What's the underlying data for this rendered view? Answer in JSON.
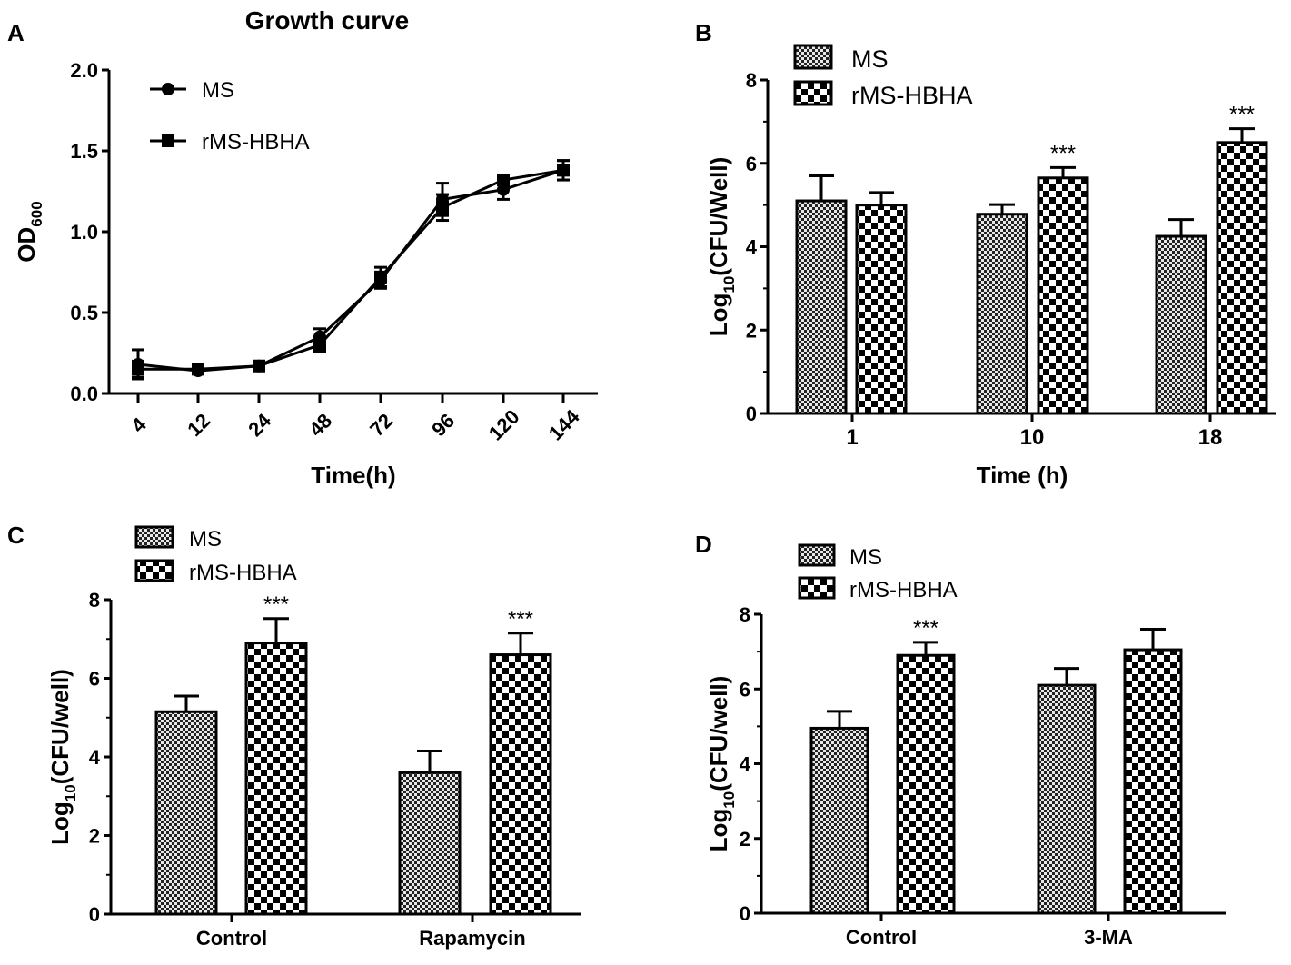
{
  "chart_data": [
    {
      "panel": "A",
      "type": "line",
      "title": "Growth curve",
      "xlabel": "Time(h)",
      "ylabel": "OD",
      "ylabel_sub": "600",
      "categories": [
        "4",
        "12",
        "24",
        "48",
        "72",
        "96",
        "120",
        "144"
      ],
      "ylim": [
        0,
        2.0
      ],
      "yticks": [
        "0.0",
        "0.5",
        "1.0",
        "1.5",
        "2.0"
      ],
      "legend_position": "top-left",
      "series": [
        {
          "name": "MS",
          "marker": "circle",
          "values": [
            0.18,
            0.14,
            0.17,
            0.35,
            0.7,
            1.2,
            1.26,
            1.38
          ],
          "errors": [
            0.09,
            0.02,
            0.02,
            0.05,
            0.05,
            0.1,
            0.06,
            0.06
          ]
        },
        {
          "name": "rMS-HBHA",
          "marker": "square",
          "values": [
            0.15,
            0.15,
            0.17,
            0.3,
            0.72,
            1.15,
            1.32,
            1.38
          ],
          "errors": [
            0.05,
            0.02,
            0.02,
            0.04,
            0.06,
            0.08,
            0.03,
            0.06
          ]
        }
      ]
    },
    {
      "panel": "B",
      "type": "bar",
      "xlabel": "Time (h)",
      "ylabel": "Log",
      "ylabel_sub": "10",
      "ylabel_rest": "(CFU/Well)",
      "categories": [
        "1",
        "10",
        "18"
      ],
      "ylim": [
        0,
        8
      ],
      "yticks": [
        "0",
        "2",
        "4",
        "6",
        "8"
      ],
      "legend_position": "top-left",
      "series": [
        {
          "name": "MS",
          "values": [
            5.1,
            4.78,
            4.25
          ],
          "errors": [
            0.6,
            0.23,
            0.4
          ],
          "sig": [
            "",
            "",
            ""
          ]
        },
        {
          "name": "rMS-HBHA",
          "values": [
            5.0,
            5.65,
            6.5
          ],
          "errors": [
            0.3,
            0.25,
            0.33
          ],
          "sig": [
            "",
            "***",
            "***"
          ]
        }
      ]
    },
    {
      "panel": "C",
      "type": "bar",
      "xlabel": "",
      "ylabel": "Log",
      "ylabel_sub": "10",
      "ylabel_rest": "(CFU/well)",
      "categories": [
        "Control",
        "Rapamycin"
      ],
      "ylim": [
        0,
        8
      ],
      "yticks": [
        "0",
        "2",
        "4",
        "6",
        "8"
      ],
      "legend_position": "top-left",
      "series": [
        {
          "name": "MS",
          "values": [
            5.15,
            3.6
          ],
          "errors": [
            0.4,
            0.55
          ],
          "sig": [
            "",
            ""
          ]
        },
        {
          "name": "rMS-HBHA",
          "values": [
            6.9,
            6.6
          ],
          "errors": [
            0.62,
            0.55
          ],
          "sig": [
            "***",
            "***"
          ]
        }
      ]
    },
    {
      "panel": "D",
      "type": "bar",
      "xlabel": "",
      "ylabel": "Log",
      "ylabel_sub": "10",
      "ylabel_rest": "(CFU/well)",
      "categories": [
        "Control",
        "3-MA"
      ],
      "ylim": [
        0,
        8
      ],
      "yticks": [
        "0",
        "2",
        "4",
        "6",
        "8"
      ],
      "legend_position": "top-left",
      "series": [
        {
          "name": "MS",
          "values": [
            4.95,
            6.1
          ],
          "errors": [
            0.45,
            0.45
          ],
          "sig": [
            "",
            ""
          ]
        },
        {
          "name": "rMS-HBHA",
          "values": [
            6.9,
            7.05
          ],
          "errors": [
            0.35,
            0.55
          ],
          "sig": [
            "***",
            ""
          ]
        }
      ]
    }
  ]
}
